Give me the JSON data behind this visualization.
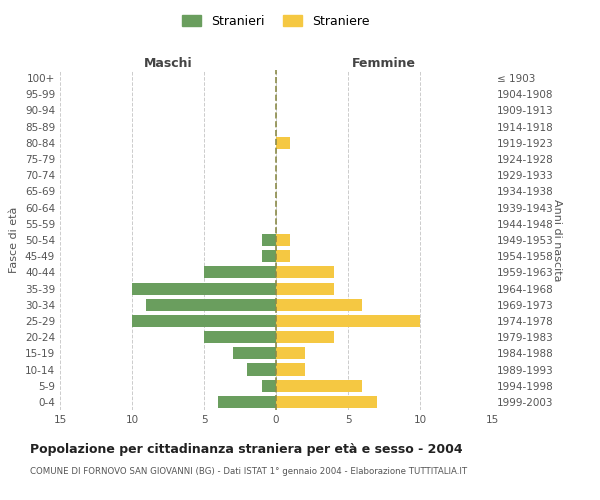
{
  "age_groups": [
    "100+",
    "95-99",
    "90-94",
    "85-89",
    "80-84",
    "75-79",
    "70-74",
    "65-69",
    "60-64",
    "55-59",
    "50-54",
    "45-49",
    "40-44",
    "35-39",
    "30-34",
    "25-29",
    "20-24",
    "15-19",
    "10-14",
    "5-9",
    "0-4"
  ],
  "birth_years": [
    "≤ 1903",
    "1904-1908",
    "1909-1913",
    "1914-1918",
    "1919-1923",
    "1924-1928",
    "1929-1933",
    "1934-1938",
    "1939-1943",
    "1944-1948",
    "1949-1953",
    "1954-1958",
    "1959-1963",
    "1964-1968",
    "1969-1973",
    "1974-1978",
    "1979-1983",
    "1984-1988",
    "1989-1993",
    "1994-1998",
    "1999-2003"
  ],
  "males": [
    0,
    0,
    0,
    0,
    0,
    0,
    0,
    0,
    0,
    0,
    1,
    1,
    5,
    10,
    9,
    10,
    5,
    3,
    2,
    1,
    4
  ],
  "females": [
    0,
    0,
    0,
    0,
    1,
    0,
    0,
    0,
    0,
    0,
    1,
    1,
    4,
    4,
    6,
    10,
    4,
    2,
    2,
    6,
    7
  ],
  "male_color": "#6a9e5e",
  "female_color": "#f5c842",
  "background_color": "#ffffff",
  "grid_color": "#cccccc",
  "title": "Popolazione per cittadinanza straniera per età e sesso - 2004",
  "subtitle": "COMUNE DI FORNOVO SAN GIOVANNI (BG) - Dati ISTAT 1° gennaio 2004 - Elaborazione TUTTITALIA.IT",
  "xlabel_left": "Maschi",
  "xlabel_right": "Femmine",
  "ylabel_left": "Fasce di età",
  "ylabel_right": "Anni di nascita",
  "legend_male": "Stranieri",
  "legend_female": "Straniere",
  "xlim": 15,
  "center_line_color": "#8b8b4a"
}
